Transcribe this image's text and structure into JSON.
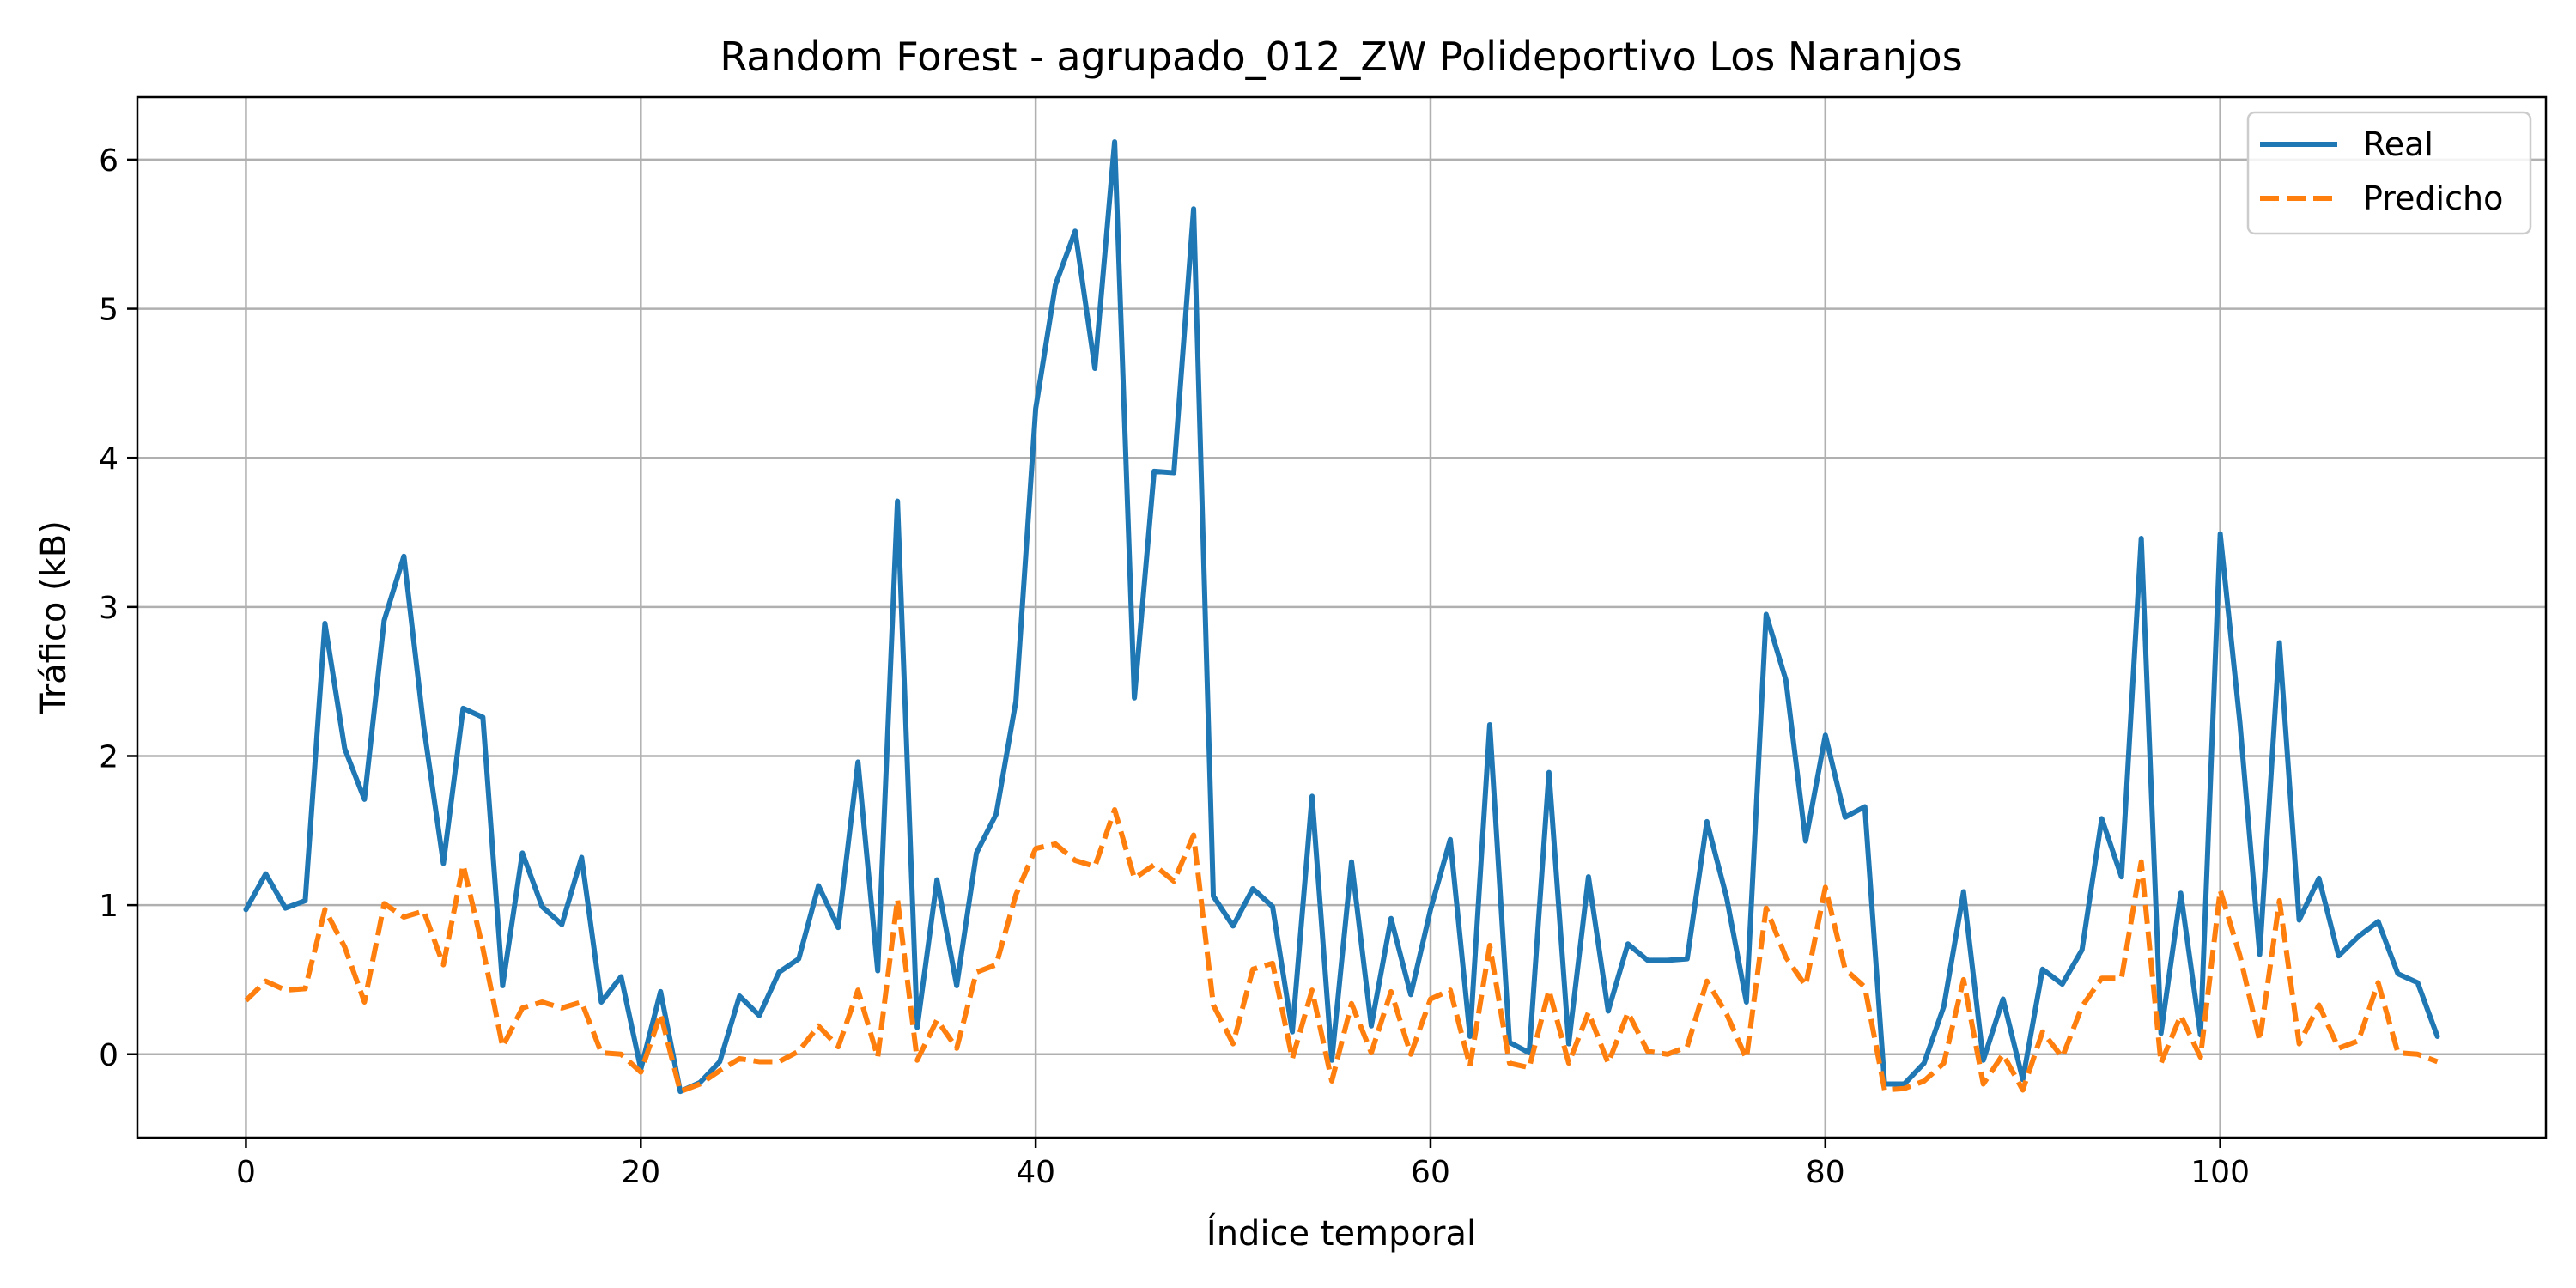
{
  "chart_data": {
    "type": "line",
    "title": "Random Forest - agrupado_012_ZW Polideportivo Los Naranjos",
    "xlabel": "Índice temporal",
    "ylabel": "Tráfico (kB)",
    "xlim": [
      -5.5,
      116.5
    ],
    "ylim": [
      -0.56,
      6.42
    ],
    "xticks": [
      0,
      20,
      40,
      60,
      80,
      100
    ],
    "yticks": [
      0,
      1,
      2,
      3,
      4,
      5,
      6
    ],
    "grid": true,
    "legend_position": "top-right",
    "series": [
      {
        "name": "Real",
        "color": "#1f77b4",
        "style": "solid",
        "values": [
          0.97,
          1.21,
          0.98,
          1.03,
          2.89,
          2.05,
          1.71,
          2.91,
          3.34,
          2.2,
          1.28,
          2.32,
          2.26,
          0.46,
          1.35,
          0.99,
          0.87,
          1.32,
          0.35,
          0.52,
          -0.1,
          0.42,
          -0.25,
          -0.19,
          -0.05,
          0.39,
          0.26,
          0.55,
          0.64,
          1.13,
          0.85,
          1.96,
          0.56,
          3.71,
          0.18,
          1.17,
          0.46,
          1.35,
          1.61,
          2.37,
          4.33,
          5.16,
          5.52,
          4.6,
          6.12,
          2.39,
          3.91,
          3.9,
          5.67,
          1.06,
          0.86,
          1.11,
          0.99,
          0.15,
          1.73,
          -0.04,
          1.29,
          0.19,
          0.91,
          0.4,
          0.97,
          1.44,
          0.12,
          2.21,
          0.08,
          0.01,
          1.89,
          0.07,
          1.19,
          0.29,
          0.74,
          0.63,
          0.63,
          0.64,
          1.56,
          1.05,
          0.35,
          2.95,
          2.51,
          1.43,
          2.14,
          1.59,
          1.66,
          -0.2,
          -0.2,
          -0.06,
          0.32,
          1.09,
          -0.04,
          0.37,
          -0.17,
          0.57,
          0.47,
          0.7,
          1.58,
          1.19,
          3.46,
          0.14,
          1.08,
          0.13,
          3.49,
          2.22,
          0.67,
          2.76,
          0.9,
          1.18,
          0.66,
          0.79,
          0.89,
          0.54,
          0.48,
          0.12
        ]
      },
      {
        "name": "Predicho",
        "color": "#ff7f0e",
        "style": "dashed",
        "values": [
          0.36,
          0.49,
          0.43,
          0.44,
          0.97,
          0.72,
          0.35,
          1.01,
          0.92,
          0.96,
          0.6,
          1.27,
          0.71,
          0.05,
          0.31,
          0.35,
          0.31,
          0.35,
          0.01,
          0.0,
          -0.12,
          0.27,
          -0.25,
          -0.2,
          -0.11,
          -0.03,
          -0.05,
          -0.05,
          0.02,
          0.19,
          0.05,
          0.43,
          -0.02,
          1.04,
          -0.04,
          0.23,
          0.04,
          0.55,
          0.6,
          1.07,
          1.38,
          1.41,
          1.3,
          1.26,
          1.64,
          1.18,
          1.27,
          1.16,
          1.47,
          0.33,
          0.07,
          0.57,
          0.61,
          -0.03,
          0.43,
          -0.18,
          0.34,
          0.01,
          0.42,
          0.0,
          0.37,
          0.43,
          -0.08,
          0.73,
          -0.06,
          -0.09,
          0.43,
          -0.06,
          0.28,
          -0.06,
          0.28,
          0.02,
          0.0,
          0.05,
          0.49,
          0.27,
          -0.03,
          0.98,
          0.65,
          0.46,
          1.12,
          0.57,
          0.45,
          -0.24,
          -0.23,
          -0.18,
          -0.06,
          0.5,
          -0.2,
          0.0,
          -0.24,
          0.15,
          -0.02,
          0.32,
          0.51,
          0.51,
          1.29,
          -0.06,
          0.26,
          -0.02,
          1.1,
          0.66,
          0.09,
          1.03,
          0.07,
          0.33,
          0.04,
          0.09,
          0.48,
          0.01,
          0.0,
          -0.05
        ]
      }
    ]
  }
}
